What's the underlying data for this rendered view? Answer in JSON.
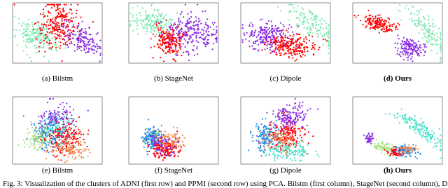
{
  "figure": {
    "panels": [
      {
        "caption": "(a) Bilstm"
      },
      {
        "caption": "(b) StageNet"
      },
      {
        "caption": "(c) Dipole"
      },
      {
        "caption": "(d) Ours"
      },
      {
        "caption": "(e) Bilstm"
      },
      {
        "caption": "(f) StageNet"
      },
      {
        "caption": "(g) Dipole"
      },
      {
        "caption": "(h) Ours"
      }
    ],
    "caption": "Fig. 3: Visualization of the clusters of ADNI (first row) and PPMI (second row) using PCA. Bilstm (first column), StageNet (second column), Dipole"
  }
}
